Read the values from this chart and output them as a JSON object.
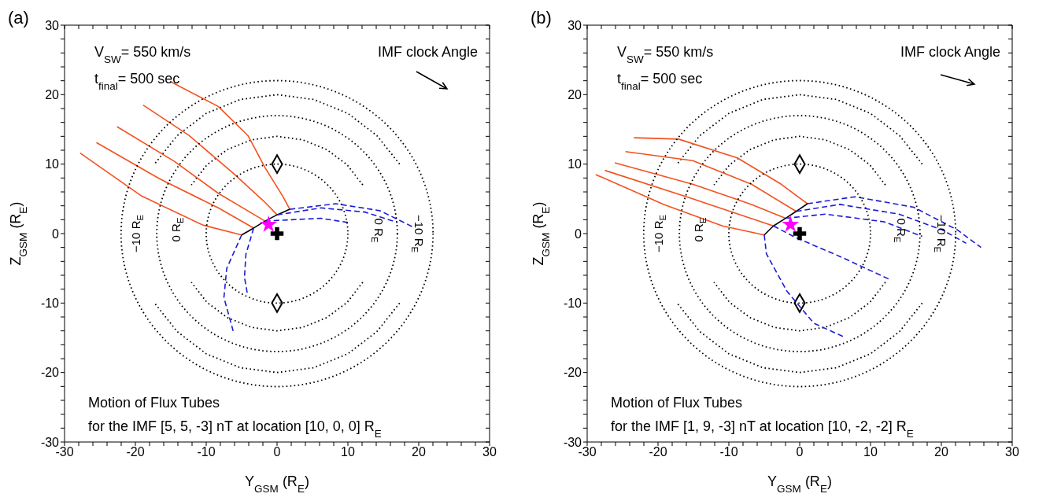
{
  "chart_data": [
    {
      "type": "line",
      "title": "(a)",
      "xlabel": "Y$_{GSM}$ (R$_{E}$)",
      "ylabel": "Z$_{GSM}$ (R$_{E}$)",
      "xlim": [
        -30,
        30
      ],
      "ylim": [
        -30,
        30
      ],
      "xticks": [
        -30,
        {
          "value": -28,
          "label": null
        },
        {
          "value": -26,
          "label": null
        },
        {
          "value": -24,
          "label": null
        },
        {
          "value": -22,
          "label": null
        },
        -20,
        {
          "value": -18,
          "label": null
        },
        {
          "value": -16,
          "label": null
        },
        {
          "value": -14,
          "label": null
        },
        {
          "value": -12,
          "label": null
        },
        -10,
        {
          "value": -8,
          "label": null
        },
        {
          "value": -6,
          "label": null
        },
        {
          "value": -4,
          "label": null
        },
        {
          "value": -2,
          "label": null
        },
        0,
        {
          "value": 2,
          "label": null
        },
        {
          "value": 4,
          "label": null
        },
        {
          "value": 6,
          "label": null
        },
        {
          "value": 8,
          "label": null
        },
        10,
        {
          "value": 12,
          "label": null
        },
        {
          "value": 14,
          "label": null
        },
        {
          "value": 16,
          "label": null
        },
        {
          "value": 18,
          "label": null
        },
        20,
        {
          "value": 22,
          "label": null
        },
        {
          "value": 24,
          "label": null
        },
        {
          "value": 26,
          "label": null
        },
        {
          "value": 28,
          "label": null
        },
        30
      ],
      "yticks": [
        -30,
        {
          "value": -28,
          "label": null
        },
        {
          "value": -26,
          "label": null
        },
        {
          "value": -24,
          "label": null
        },
        {
          "value": -22,
          "label": null
        },
        -20,
        {
          "value": -18,
          "label": null
        },
        {
          "value": -16,
          "label": null
        },
        {
          "value": -14,
          "label": null
        },
        {
          "value": -12,
          "label": null
        },
        -10,
        {
          "value": -8,
          "label": null
        },
        {
          "value": -6,
          "label": null
        },
        {
          "value": -4,
          "label": null
        },
        {
          "value": -2,
          "label": null
        },
        0,
        {
          "value": 2,
          "label": null
        },
        {
          "value": 4,
          "label": null
        },
        {
          "value": 6,
          "label": null
        },
        {
          "value": 8,
          "label": null
        },
        10,
        {
          "value": 12,
          "label": null
        },
        {
          "value": 14,
          "label": null
        },
        {
          "value": 16,
          "label": null
        },
        {
          "value": 18,
          "label": null
        },
        20,
        {
          "value": 22,
          "label": null
        },
        {
          "value": 24,
          "label": null
        },
        {
          "value": 26,
          "label": null
        },
        {
          "value": 28,
          "label": null
        },
        30
      ],
      "annotations": [
        "V$_{SW}$= 550 km/s",
        "t$_{final}$= 500 sec",
        "IMF clock Angle",
        "Motion of Flux Tubes",
        "for the IMF [5, 5, -3] nT at location [10, 0, 0] R$_{E}$",
        "−10 R$_{E}$",
        "0 R$_{E}$",
        "0 R$_{E}$",
        "−10 R$_{E}$"
      ],
      "series": [
        {
          "type": "line",
          "color": "#000000",
          "line_style": "dotted",
          "x": [
            12.1,
            9.9,
            7,
            3.6,
            0,
            -3.6,
            -7,
            -9.9,
            -12.1
          ],
          "values": [
            7,
            9.9,
            12.1,
            13.5,
            14,
            13.5,
            12.1,
            9.9,
            7
          ]
        },
        {
          "type": "line",
          "color": "#000000",
          "line_style": "dotted",
          "x": [
            12.1,
            9.9,
            7,
            3.6,
            0,
            -3.6,
            -7,
            -9.9,
            -12.1
          ],
          "values": [
            -7,
            -9.9,
            -12.1,
            -13.5,
            -14,
            -13.5,
            -12.1,
            -9.9,
            -7
          ]
        },
        {
          "type": "line",
          "color": "#000000",
          "line_style": "dotted",
          "x": [
            17.3,
            14.1,
            10,
            5.2,
            0,
            -5.2,
            -10,
            -14.1,
            -17.3
          ],
          "values": [
            10,
            14.1,
            17.3,
            19.3,
            20,
            19.3,
            17.3,
            14.1,
            10
          ]
        },
        {
          "type": "line",
          "color": "#000000",
          "line_style": "dotted",
          "x": [
            17.3,
            14.1,
            10,
            5.2,
            0,
            -5.2,
            -10,
            -14.1,
            -17.3
          ],
          "values": [
            -10,
            -14.1,
            -17.3,
            -19.3,
            -20,
            -19.3,
            -17.3,
            -14.1,
            -10
          ]
        },
        {
          "type": "line",
          "color": "#f4511e",
          "line_style": "solid",
          "x": [
            -15.1,
            -8.3,
            -4.1,
            -1.7,
            0.8,
            1.8
          ],
          "values": [
            21.9,
            18.3,
            14.1,
            9.5,
            5.4,
            3.5
          ]
        },
        {
          "type": "line",
          "color": "#f4511e",
          "line_style": "solid",
          "x": [
            -18.9,
            -12.4,
            -6.2,
            -1.7,
            0
          ],
          "values": [
            18.5,
            14.1,
            8.7,
            4.5,
            2.7
          ]
        },
        {
          "type": "line",
          "color": "#f4511e",
          "line_style": "solid",
          "x": [
            -22.6,
            -14.5,
            -8.3,
            -1.7
          ],
          "values": [
            15.4,
            10.4,
            5.8,
            1.8
          ]
        },
        {
          "type": "line",
          "color": "#f4511e",
          "line_style": "solid",
          "x": [
            -25.5,
            -16.6,
            -8.3,
            -3.3
          ],
          "values": [
            13.1,
            7.9,
            3.7,
            0.8
          ]
        },
        {
          "type": "line",
          "color": "#f4511e",
          "line_style": "solid",
          "x": [
            -27.8,
            -19.1,
            -10.4,
            -5
          ],
          "values": [
            11.6,
            5.4,
            1.2,
            -0.2
          ]
        },
        {
          "type": "line",
          "color": "#000000",
          "line_style": "solid",
          "x": [
            -5,
            -3.3,
            -1.7,
            0,
            1.8
          ],
          "values": [
            -0.2,
            0.8,
            1.8,
            2.7,
            3.5
          ]
        },
        {
          "type": "line",
          "color": "#1c1cd6",
          "line_style": "dashed",
          "x": [
            1.8,
            8.3,
            14.5,
            19.1
          ],
          "values": [
            3.5,
            4.3,
            3.3,
            1
          ]
        },
        {
          "type": "line",
          "color": "#1c1cd6",
          "line_style": "dashed",
          "x": [
            0,
            6.2,
            12.4,
            17
          ],
          "values": [
            2.7,
            3.7,
            3.1,
            1.6
          ]
        },
        {
          "type": "line",
          "color": "#1c1cd6",
          "line_style": "dashed",
          "x": [
            -1.7,
            2.1,
            6.2,
            10
          ],
          "values": [
            1.8,
            2,
            2.2,
            1.6
          ]
        },
        {
          "type": "line",
          "color": "#1c1cd6",
          "line_style": "dashed",
          "x": [
            -3.3,
            -4.4,
            -4.6,
            -4.2
          ],
          "values": [
            0.8,
            -3,
            -6.3,
            -8.6
          ]
        },
        {
          "type": "line",
          "color": "#1c1cd6",
          "line_style": "dashed",
          "x": [
            -5,
            -7.1,
            -7.5,
            -6.2
          ],
          "values": [
            -0.2,
            -5,
            -9.2,
            -14
          ]
        },
        {
          "type": "scatter",
          "color": "#000000",
          "marker": "diamond",
          "x": [
            0,
            0
          ],
          "values": [
            10,
            -10
          ]
        },
        {
          "type": "scatter",
          "color": "#000000",
          "marker": "cross",
          "x": [
            0
          ],
          "values": [
            0
          ]
        },
        {
          "type": "scatter",
          "color": "#ff00ff",
          "marker": "star",
          "x": [
            -1.2
          ],
          "values": [
            1.3
          ]
        }
      ]
    },
    {
      "type": "line",
      "title": "(b)",
      "xlabel": "Y$_{GSM}$ (R$_{E}$)",
      "ylabel": "Z$_{GSM}$ (R$_{E}$)",
      "xlim": [
        -30,
        30
      ],
      "ylim": [
        -30,
        30
      ],
      "xticks": [
        -30,
        {
          "value": -28,
          "label": null
        },
        {
          "value": -26,
          "label": null
        },
        {
          "value": -24,
          "label": null
        },
        {
          "value": -22,
          "label": null
        },
        -20,
        {
          "value": -18,
          "label": null
        },
        {
          "value": -16,
          "label": null
        },
        {
          "value": -14,
          "label": null
        },
        {
          "value": -12,
          "label": null
        },
        -10,
        {
          "value": -8,
          "label": null
        },
        {
          "value": -6,
          "label": null
        },
        {
          "value": -4,
          "label": null
        },
        {
          "value": -2,
          "label": null
        },
        0,
        {
          "value": 2,
          "label": null
        },
        {
          "value": 4,
          "label": null
        },
        {
          "value": 6,
          "label": null
        },
        {
          "value": 8,
          "label": null
        },
        10,
        {
          "value": 12,
          "label": null
        },
        {
          "value": 14,
          "label": null
        },
        {
          "value": 16,
          "label": null
        },
        {
          "value": 18,
          "label": null
        },
        20,
        {
          "value": 22,
          "label": null
        },
        {
          "value": 24,
          "label": null
        },
        {
          "value": 26,
          "label": null
        },
        {
          "value": 28,
          "label": null
        },
        30
      ],
      "yticks": [
        -30,
        {
          "value": -28,
          "label": null
        },
        {
          "value": -26,
          "label": null
        },
        {
          "value": -24,
          "label": null
        },
        {
          "value": -22,
          "label": null
        },
        -20,
        {
          "value": -18,
          "label": null
        },
        {
          "value": -16,
          "label": null
        },
        {
          "value": -14,
          "label": null
        },
        {
          "value": -12,
          "label": null
        },
        -10,
        {
          "value": -8,
          "label": null
        },
        {
          "value": -6,
          "label": null
        },
        {
          "value": -4,
          "label": null
        },
        {
          "value": -2,
          "label": null
        },
        0,
        {
          "value": 2,
          "label": null
        },
        {
          "value": 4,
          "label": null
        },
        {
          "value": 6,
          "label": null
        },
        {
          "value": 8,
          "label": null
        },
        10,
        {
          "value": 12,
          "label": null
        },
        {
          "value": 14,
          "label": null
        },
        {
          "value": 16,
          "label": null
        },
        {
          "value": 18,
          "label": null
        },
        20,
        {
          "value": 22,
          "label": null
        },
        {
          "value": 24,
          "label": null
        },
        {
          "value": 26,
          "label": null
        },
        {
          "value": 28,
          "label": null
        },
        30
      ],
      "annotations": [
        "V$_{SW}$= 550 km/s",
        "t$_{final}$= 500 sec",
        "IMF clock Angle",
        "Motion of Flux Tubes",
        "for the IMF [1, 9, -3] nT at location [10, -2, -2] R$_{E}$",
        "−10 R$_{E}$",
        "0 R$_{E}$",
        "0 R$_{E}$",
        "−10 R$_{E}$"
      ],
      "series": [
        {
          "type": "line",
          "color": "#000000",
          "line_style": "dotted",
          "x": [
            12.1,
            9.9,
            7,
            3.6,
            0,
            -3.6,
            -7,
            -9.9,
            -12.1
          ],
          "values": [
            7,
            9.9,
            12.1,
            13.5,
            14,
            13.5,
            12.1,
            9.9,
            7
          ]
        },
        {
          "type": "line",
          "color": "#000000",
          "line_style": "dotted",
          "x": [
            12.1,
            9.9,
            7,
            3.6,
            0,
            -3.6,
            -7,
            -9.9,
            -12.1
          ],
          "values": [
            -7,
            -9.9,
            -12.1,
            -13.5,
            -14,
            -13.5,
            -12.1,
            -9.9,
            -7
          ]
        },
        {
          "type": "line",
          "color": "#000000",
          "line_style": "dotted",
          "x": [
            17.3,
            14.1,
            10,
            5.2,
            0,
            -5.2,
            -10,
            -14.1,
            -17.3
          ],
          "values": [
            10,
            14.1,
            17.3,
            19.3,
            20,
            19.3,
            17.3,
            14.1,
            10
          ]
        },
        {
          "type": "line",
          "color": "#000000",
          "line_style": "dotted",
          "x": [
            17.3,
            14.1,
            10,
            5.2,
            0,
            -5.2,
            -10,
            -14.1,
            -17.3
          ],
          "values": [
            -10,
            -14.1,
            -17.3,
            -19.3,
            -20,
            -19.3,
            -17.3,
            -14.1,
            -10
          ]
        },
        {
          "type": "line",
          "color": "#f4511e",
          "line_style": "solid",
          "x": [
            -23.4,
            -17.1,
            -8.8,
            -2.6,
            1.1
          ],
          "values": [
            13.8,
            13.6,
            10.9,
            7.1,
            4.3
          ]
        },
        {
          "type": "line",
          "color": "#f4511e",
          "line_style": "solid",
          "x": [
            -24.6,
            -15.1,
            -6.8,
            -0.5
          ],
          "values": [
            11.8,
            10.5,
            7.1,
            3.2
          ]
        },
        {
          "type": "line",
          "color": "#f4511e",
          "line_style": "solid",
          "x": [
            -26.1,
            -15.1,
            -6.8,
            -2
          ],
          "values": [
            10.2,
            7.1,
            4.2,
            2.2
          ]
        },
        {
          "type": "line",
          "color": "#f4511e",
          "line_style": "solid",
          "x": [
            -27.5,
            -15.1,
            -3.7
          ],
          "values": [
            9.1,
            5,
            1.1
          ]
        },
        {
          "type": "line",
          "color": "#f4511e",
          "line_style": "solid",
          "x": [
            -28.8,
            -19.2,
            -10.9,
            -5
          ],
          "values": [
            8.5,
            4.2,
            1.1,
            -0.2
          ]
        },
        {
          "type": "line",
          "color": "#000000",
          "line_style": "solid",
          "x": [
            -5,
            -3.7,
            -2,
            -0.5,
            1.1
          ],
          "values": [
            -0.2,
            1.1,
            2.2,
            3.2,
            4.3
          ]
        },
        {
          "type": "line",
          "color": "#1c1cd6",
          "line_style": "dashed",
          "x": [
            1.1,
            7.8,
            16.1,
            22.3,
            25.6
          ],
          "values": [
            4.3,
            5.3,
            3.8,
            0.5,
            -2
          ]
        },
        {
          "type": "line",
          "color": "#1c1cd6",
          "line_style": "dashed",
          "x": [
            -0.5,
            5.7,
            14,
            20.2,
            23.5
          ],
          "values": [
            3.2,
            4.2,
            2.8,
            0.5,
            -1.4
          ]
        },
        {
          "type": "line",
          "color": "#1c1cd6",
          "line_style": "dashed",
          "x": [
            -2,
            3.6,
            11.9,
            17.3
          ],
          "values": [
            2.2,
            2.8,
            1.7,
            -0.4
          ]
        },
        {
          "type": "line",
          "color": "#1c1cd6",
          "line_style": "dashed",
          "x": [
            -3.7,
            -0.5,
            5.7,
            12.7
          ],
          "values": [
            1.1,
            -0.6,
            -3.3,
            -6.6
          ]
        },
        {
          "type": "line",
          "color": "#1c1cd6",
          "line_style": "dashed",
          "x": [
            -5,
            -4.7,
            -1.8,
            2,
            6.1
          ],
          "values": [
            -0.2,
            -2.9,
            -8.3,
            -12.9,
            -14.8
          ]
        },
        {
          "type": "scatter",
          "color": "#000000",
          "marker": "diamond",
          "x": [
            0,
            0
          ],
          "values": [
            10,
            -10
          ]
        },
        {
          "type": "scatter",
          "color": "#000000",
          "marker": "cross",
          "x": [
            0
          ],
          "values": [
            0
          ]
        },
        {
          "type": "scatter",
          "color": "#ff00ff",
          "marker": "star",
          "x": [
            -1.3
          ],
          "values": [
            1.3
          ]
        }
      ]
    }
  ]
}
